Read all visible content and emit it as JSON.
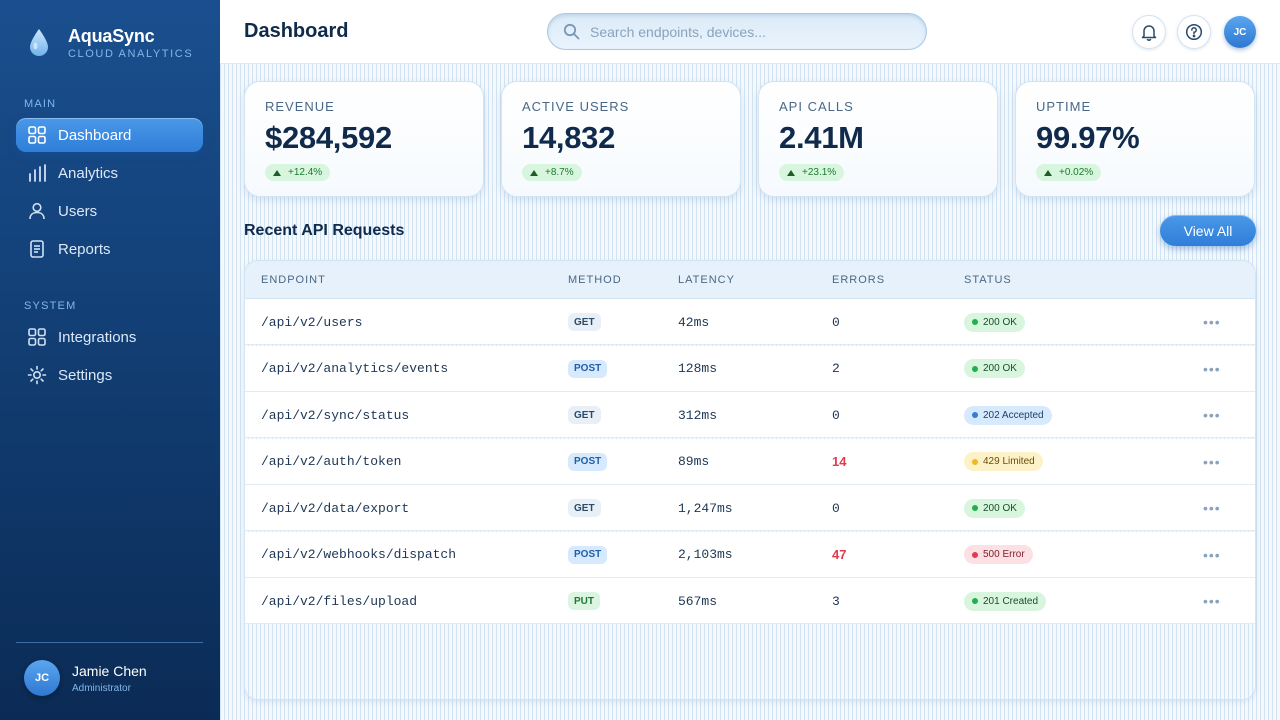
{
  "brand": {
    "name": "AquaSync",
    "subtitle": "CLOUD ANALYTICS"
  },
  "sidebar": {
    "sections": [
      {
        "label": "MAIN",
        "items": [
          {
            "label": "Dashboard",
            "icon": "grid-icon",
            "active": true
          },
          {
            "label": "Analytics",
            "icon": "bar-chart-icon"
          },
          {
            "label": "Users",
            "icon": "user-icon"
          },
          {
            "label": "Reports",
            "icon": "document-icon"
          }
        ]
      },
      {
        "label": "SYSTEM",
        "items": [
          {
            "label": "Integrations",
            "icon": "grid-icon"
          },
          {
            "label": "Settings",
            "icon": "gear-icon"
          }
        ]
      }
    ],
    "profile": {
      "initials": "JC",
      "name": "Jamie Chen",
      "role": "Administrator"
    }
  },
  "header": {
    "title": "Dashboard",
    "search_placeholder": "Search endpoints, devices...",
    "avatar_initials": "JC"
  },
  "stats": [
    {
      "label": "REVENUE",
      "value": "$284,592",
      "delta": "+12.4%"
    },
    {
      "label": "ACTIVE USERS",
      "value": "14,832",
      "delta": "+8.7%"
    },
    {
      "label": "API CALLS",
      "value": "2.41M",
      "delta": "+23.1%"
    },
    {
      "label": "UPTIME",
      "value": "99.97%",
      "delta": "+0.02%"
    }
  ],
  "requests": {
    "title": "Recent API Requests",
    "view_all": "View All",
    "columns": [
      "ENDPOINT",
      "METHOD",
      "LATENCY",
      "ERRORS",
      "STATUS"
    ],
    "rows": [
      {
        "endpoint": "/api/v2/users",
        "method": "GET",
        "latency": "42ms",
        "errors": "0",
        "status": "200 OK",
        "status_kind": "ok"
      },
      {
        "endpoint": "/api/v2/analytics/events",
        "method": "POST",
        "latency": "128ms",
        "errors": "2",
        "status": "200 OK",
        "status_kind": "ok"
      },
      {
        "endpoint": "/api/v2/sync/status",
        "method": "GET",
        "latency": "312ms",
        "errors": "0",
        "status": "202 Accepted",
        "status_kind": "accepted"
      },
      {
        "endpoint": "/api/v2/auth/token",
        "method": "POST",
        "latency": "89ms",
        "errors": "14",
        "status": "429 Limited",
        "status_kind": "limited"
      },
      {
        "endpoint": "/api/v2/data/export",
        "method": "GET",
        "latency": "1,247ms",
        "errors": "0",
        "status": "200 OK",
        "status_kind": "ok"
      },
      {
        "endpoint": "/api/v2/webhooks/dispatch",
        "method": "POST",
        "latency": "2,103ms",
        "errors": "47",
        "status": "500 Error",
        "status_kind": "error"
      },
      {
        "endpoint": "/api/v2/files/upload",
        "method": "PUT",
        "latency": "567ms",
        "errors": "3",
        "status": "201 Created",
        "status_kind": "created"
      }
    ]
  },
  "colors": {
    "accent": "#2f7ed9",
    "sidebar": "#123f75",
    "success": "#21b04b",
    "warning": "#f1b81f",
    "danger": "#e23b4e"
  }
}
